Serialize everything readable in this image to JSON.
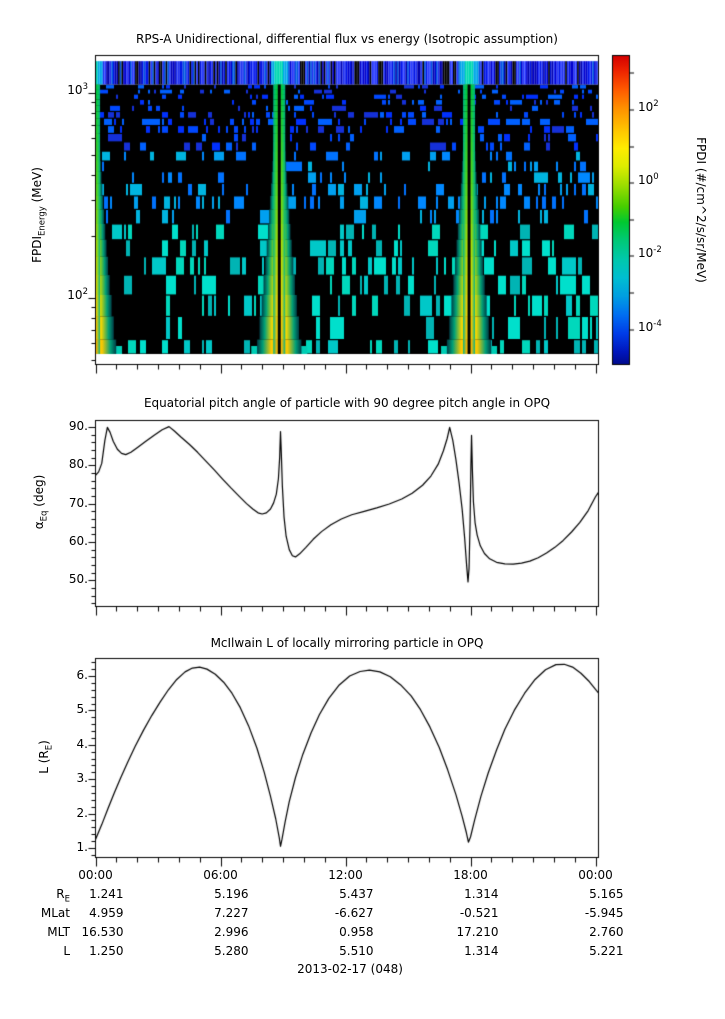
{
  "page": {
    "background": "#ffffff",
    "text_color": "#000000"
  },
  "chart_data": [
    {
      "type": "heatmap",
      "title": "RPS-A Unidirectional, differential flux vs energy (Isotropic assumption)",
      "ylabel_parts": {
        "pre": "FPDI",
        "sub": "Energy",
        "post": " (MeV)"
      },
      "xlabel": "",
      "x_hours_range": [
        0,
        24.15
      ],
      "x_major_tick_hours": [
        0,
        6,
        12,
        18,
        24
      ],
      "x_minor_step_hours": 1,
      "y_scale": "log",
      "y_range_mev": [
        47,
        1530
      ],
      "y_tick_labels": [
        {
          "base": "10",
          "exp": "3",
          "value_mev": 1000
        },
        {
          "base": "10",
          "exp": "2",
          "value_mev": 100
        }
      ],
      "colorbar": {
        "label": "FPDI (#/cm^2/s/sr/MeV)",
        "scale": "log",
        "tick_exponents_labeled": [
          "2",
          "0",
          "-2",
          "-4"
        ],
        "tick_exponents_all": [
          3,
          2,
          1,
          0,
          -1,
          -2,
          -3,
          -4
        ],
        "gradient_stops": [
          [
            0.0,
            "#d40000"
          ],
          [
            0.05,
            "#ee2400"
          ],
          [
            0.11,
            "#ff5a00"
          ],
          [
            0.17,
            "#ff9000"
          ],
          [
            0.24,
            "#ffc400"
          ],
          [
            0.3,
            "#ffec00"
          ],
          [
            0.36,
            "#dcec00"
          ],
          [
            0.42,
            "#9cde00"
          ],
          [
            0.48,
            "#46cе00"
          ],
          [
            0.49,
            "#46ce00"
          ],
          [
            0.54,
            "#00c832"
          ],
          [
            0.6,
            "#00c878"
          ],
          [
            0.66,
            "#00c8ac"
          ],
          [
            0.72,
            "#00bed2"
          ],
          [
            0.78,
            "#009ee2"
          ],
          [
            0.84,
            "#006ef2"
          ],
          [
            0.9,
            "#003ce8"
          ],
          [
            0.96,
            "#0016bc"
          ],
          [
            1.0,
            "#000a8c"
          ]
        ]
      },
      "spectrogram": {
        "background": "#000000",
        "band_energy_range_mev": [
          1100,
          1430
        ],
        "band_palette": [
          "#0000cc",
          "#0014e6",
          "#2233f0",
          "#0000aa",
          "#2a3cff",
          "#0055e0"
        ],
        "band_gap_color": "#000000",
        "noise_palette_high": [
          "#0030ff",
          "#0048ff",
          "#1530d8",
          "#0060ff"
        ],
        "noise_palette_mid": [
          "#0072ff",
          "#00a0f0",
          "#0088ff",
          "#00b4e0"
        ],
        "noise_palette_low": [
          "#00c8c8",
          "#00d8bc",
          "#00b4b4",
          "#00e0cc"
        ],
        "perigee_flame_hours": [
          -0.07,
          8.82,
          17.93
        ],
        "flame_ramp": [
          [
            0.0,
            [
              0,
              205,
              60
            ]
          ],
          [
            0.35,
            [
              90,
              220,
              20
            ]
          ],
          [
            0.6,
            [
              190,
              225,
              0
            ]
          ],
          [
            0.8,
            [
              250,
              215,
              0
            ]
          ],
          [
            1.0,
            [
              255,
              175,
              0
            ]
          ]
        ],
        "flame_edge_color": "#00a078",
        "flame_fringe_color": "#00cdb4",
        "slit_color": "#000000",
        "description": "black background with sparse vertical blue/cyan flux dashes; bright green-to-yellow perigee flames widening toward low energy, each with a dark central slit"
      }
    },
    {
      "type": "line",
      "title": "Equatorial pitch angle of particle with 90 degree pitch angle in OPQ",
      "ylabel_parts": {
        "pre": "α",
        "sub": "Eq",
        "post": " (deg)"
      },
      "xlabel": "",
      "ylim": [
        43,
        92
      ],
      "y_major_ticks": [
        {
          "label": "90.",
          "value": 90
        },
        {
          "label": "80.",
          "value": 80
        },
        {
          "label": "70.",
          "value": 70
        },
        {
          "label": "60.",
          "value": 60
        },
        {
          "label": "50.",
          "value": 50
        }
      ],
      "y_minor_step": 2,
      "line_color": "#000000",
      "points": [
        [
          0,
          77.4
        ],
        [
          0.15,
          78.3
        ],
        [
          0.3,
          80.5
        ],
        [
          0.45,
          86.5
        ],
        [
          0.57,
          89.9
        ],
        [
          0.7,
          88.6
        ],
        [
          0.85,
          86.3
        ],
        [
          1.05,
          84.2
        ],
        [
          1.25,
          83.1
        ],
        [
          1.45,
          82.8
        ],
        [
          1.7,
          83.4
        ],
        [
          2.0,
          84.6
        ],
        [
          2.4,
          86.2
        ],
        [
          2.8,
          87.8
        ],
        [
          3.2,
          89.3
        ],
        [
          3.53,
          90.1
        ],
        [
          3.8,
          88.9
        ],
        [
          4.1,
          87.4
        ],
        [
          4.5,
          85.5
        ],
        [
          4.9,
          83.4
        ],
        [
          5.3,
          81.1
        ],
        [
          5.7,
          78.8
        ],
        [
          6.1,
          76.4
        ],
        [
          6.5,
          74.1
        ],
        [
          6.9,
          71.9
        ],
        [
          7.25,
          70.0
        ],
        [
          7.55,
          68.6
        ],
        [
          7.8,
          67.6
        ],
        [
          8.0,
          67.3
        ],
        [
          8.2,
          67.6
        ],
        [
          8.4,
          68.6
        ],
        [
          8.55,
          70.2
        ],
        [
          8.68,
          72.5
        ],
        [
          8.78,
          76.5
        ],
        [
          8.84,
          82
        ],
        [
          8.88,
          88.8
        ],
        [
          8.92,
          83
        ],
        [
          8.97,
          74.5
        ],
        [
          9.05,
          66.5
        ],
        [
          9.15,
          61.5
        ],
        [
          9.3,
          58
        ],
        [
          9.45,
          56.4
        ],
        [
          9.6,
          56.1
        ],
        [
          9.8,
          56.9
        ],
        [
          10.1,
          58.6
        ],
        [
          10.45,
          60.7
        ],
        [
          10.85,
          62.7
        ],
        [
          11.3,
          64.5
        ],
        [
          11.8,
          66
        ],
        [
          12.3,
          67.1
        ],
        [
          12.9,
          68
        ],
        [
          13.5,
          68.9
        ],
        [
          14.1,
          69.9
        ],
        [
          14.7,
          71.2
        ],
        [
          15.2,
          72.7
        ],
        [
          15.7,
          74.8
        ],
        [
          16.1,
          77.2
        ],
        [
          16.45,
          80.3
        ],
        [
          16.7,
          83.8
        ],
        [
          16.88,
          87
        ],
        [
          17.0,
          89.9
        ],
        [
          17.15,
          86.5
        ],
        [
          17.3,
          81.5
        ],
        [
          17.45,
          75.5
        ],
        [
          17.6,
          68.5
        ],
        [
          17.72,
          61
        ],
        [
          17.82,
          53.5
        ],
        [
          17.88,
          49.6
        ],
        [
          17.93,
          53
        ],
        [
          17.98,
          65
        ],
        [
          18.02,
          80
        ],
        [
          18.05,
          87.8
        ],
        [
          18.09,
          79
        ],
        [
          18.14,
          70.5
        ],
        [
          18.22,
          65
        ],
        [
          18.32,
          61.8
        ],
        [
          18.47,
          59
        ],
        [
          18.67,
          57
        ],
        [
          18.92,
          55.6
        ],
        [
          19.25,
          54.7
        ],
        [
          19.65,
          54.3
        ],
        [
          20.05,
          54.2
        ],
        [
          20.45,
          54.5
        ],
        [
          20.85,
          55
        ],
        [
          21.25,
          55.9
        ],
        [
          21.65,
          57.1
        ],
        [
          22.05,
          58.6
        ],
        [
          22.45,
          60.4
        ],
        [
          22.85,
          62.6
        ],
        [
          23.25,
          65.1
        ],
        [
          23.65,
          68.2
        ],
        [
          24.0,
          71.8
        ],
        [
          24.15,
          73
        ]
      ]
    },
    {
      "type": "line",
      "title": "McIlwain L of locally mirroring particle in OPQ",
      "ylabel_parts": {
        "pre": "L (R",
        "sub": "E",
        "post": ")"
      },
      "xlabel": "",
      "ylim": [
        0.7,
        6.5
      ],
      "y_major_ticks": [
        {
          "label": "6.",
          "value": 6
        },
        {
          "label": "5.",
          "value": 5
        },
        {
          "label": "4.",
          "value": 4
        },
        {
          "label": "3.",
          "value": 3
        },
        {
          "label": "2.",
          "value": 2
        },
        {
          "label": "1.",
          "value": 1
        }
      ],
      "y_minor_step": 0.2,
      "line_color": "#000000",
      "points": [
        [
          0,
          1.25
        ],
        [
          0.3,
          1.68
        ],
        [
          0.6,
          2.15
        ],
        [
          0.9,
          2.6
        ],
        [
          1.2,
          3.03
        ],
        [
          1.55,
          3.5
        ],
        [
          1.9,
          3.95
        ],
        [
          2.3,
          4.42
        ],
        [
          2.7,
          4.85
        ],
        [
          3.1,
          5.24
        ],
        [
          3.5,
          5.6
        ],
        [
          3.9,
          5.9
        ],
        [
          4.3,
          6.12
        ],
        [
          4.65,
          6.23
        ],
        [
          5.0,
          6.26
        ],
        [
          5.35,
          6.2
        ],
        [
          5.75,
          6.05
        ],
        [
          6.15,
          5.82
        ],
        [
          6.55,
          5.5
        ],
        [
          6.95,
          5.08
        ],
        [
          7.35,
          4.55
        ],
        [
          7.75,
          3.9
        ],
        [
          8.1,
          3.2
        ],
        [
          8.4,
          2.5
        ],
        [
          8.65,
          1.85
        ],
        [
          8.82,
          1.3
        ],
        [
          8.88,
          1.05
        ],
        [
          8.95,
          1.25
        ],
        [
          9.1,
          1.75
        ],
        [
          9.3,
          2.35
        ],
        [
          9.6,
          3.05
        ],
        [
          9.95,
          3.72
        ],
        [
          10.35,
          4.35
        ],
        [
          10.75,
          4.88
        ],
        [
          11.2,
          5.35
        ],
        [
          11.7,
          5.74
        ],
        [
          12.2,
          6.0
        ],
        [
          12.7,
          6.13
        ],
        [
          13.15,
          6.17
        ],
        [
          13.65,
          6.12
        ],
        [
          14.15,
          5.98
        ],
        [
          14.65,
          5.74
        ],
        [
          15.15,
          5.42
        ],
        [
          15.6,
          5.02
        ],
        [
          16.05,
          4.52
        ],
        [
          16.5,
          3.92
        ],
        [
          16.9,
          3.28
        ],
        [
          17.3,
          2.55
        ],
        [
          17.6,
          1.92
        ],
        [
          17.8,
          1.45
        ],
        [
          17.9,
          1.17
        ],
        [
          18.0,
          1.32
        ],
        [
          18.2,
          1.82
        ],
        [
          18.5,
          2.5
        ],
        [
          18.85,
          3.18
        ],
        [
          19.25,
          3.85
        ],
        [
          19.65,
          4.45
        ],
        [
          20.1,
          5.0
        ],
        [
          20.6,
          5.5
        ],
        [
          21.1,
          5.9
        ],
        [
          21.6,
          6.18
        ],
        [
          22.1,
          6.33
        ],
        [
          22.5,
          6.34
        ],
        [
          22.9,
          6.26
        ],
        [
          23.3,
          6.08
        ],
        [
          23.7,
          5.84
        ],
        [
          24.15,
          5.5
        ]
      ]
    }
  ],
  "time_axis": {
    "tick_labels": [
      "00:00",
      "06:00",
      "12:00",
      "18:00",
      "00:00"
    ],
    "tick_hours": [
      0,
      6,
      12,
      18,
      24
    ]
  },
  "ephemeris_table": {
    "rows": [
      {
        "label_parts": {
          "pre": "R",
          "sub": "E",
          "post": ""
        },
        "values": [
          "1.241",
          "5.196",
          "5.437",
          "1.314",
          "5.165"
        ]
      },
      {
        "label_parts": {
          "pre": "MLat",
          "sub": "",
          "post": ""
        },
        "values": [
          "4.959",
          "7.227",
          "-6.627",
          "-0.521",
          "-5.945"
        ]
      },
      {
        "label_parts": {
          "pre": "MLT",
          "sub": "",
          "post": ""
        },
        "values": [
          "16.530",
          "2.996",
          "0.958",
          "17.210",
          "2.760"
        ]
      },
      {
        "label_parts": {
          "pre": "L",
          "sub": "",
          "post": ""
        },
        "values": [
          "1.250",
          "5.280",
          "5.510",
          "1.314",
          "5.221"
        ]
      }
    ],
    "date_label": "2013-02-17 (048)"
  }
}
